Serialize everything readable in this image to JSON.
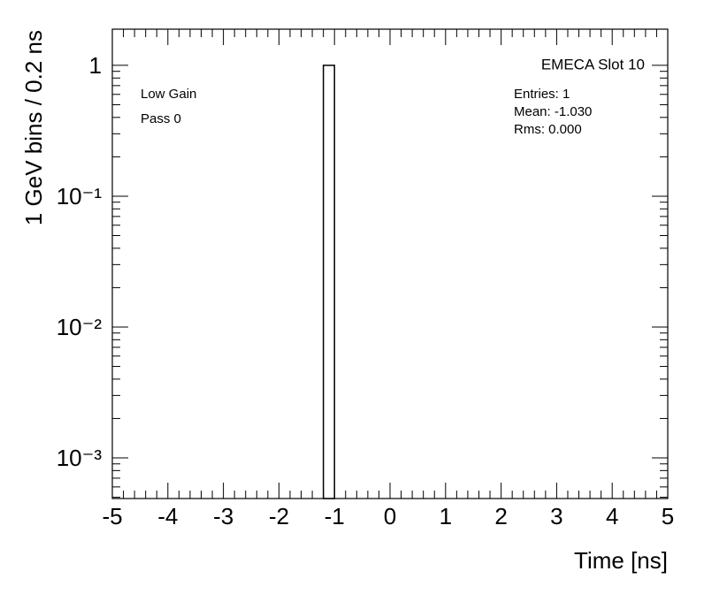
{
  "chart_data": {
    "type": "histogram",
    "title": "EMECA Slot 10",
    "stats": [
      "Entries: 1",
      "Mean: -1.030",
      "Rms: 0.000"
    ],
    "annotations": [
      "Low Gain",
      "Pass 0"
    ],
    "x_label": "Time [ns]",
    "y_label": "1 GeV bins / 0.2 ns",
    "bins": [
      -1.2,
      -1.0
    ],
    "values": [
      1
    ],
    "color": "#ffffff",
    "edgecolor": "#000000",
    "xlim": [
      -5,
      5
    ],
    "xticks": [
      -5,
      -4,
      -3,
      -2,
      -1,
      0,
      1,
      2,
      3,
      4,
      5
    ],
    "ylim": [
      0.000489,
      1.89
    ],
    "yscale": "log",
    "yticks": [
      {
        "value": 0.001,
        "label": "10⁻³"
      },
      {
        "value": 0.01,
        "label": "10⁻²"
      },
      {
        "value": 0.1,
        "label": "10⁻¹"
      },
      1
    ]
  }
}
